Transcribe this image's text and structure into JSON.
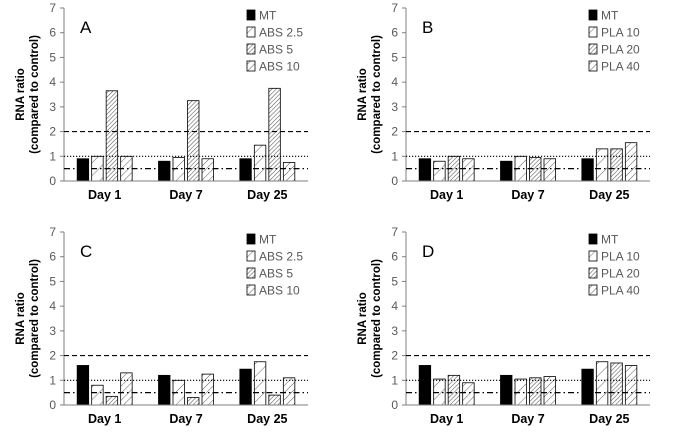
{
  "figure": {
    "ylabel_line1": "RNA ratio",
    "ylabel_line2": "(compared to control)"
  },
  "colors": {
    "mt": "#000000",
    "axis": "#7f7f7f",
    "hatch": "#555555",
    "bar_edge": "#000000",
    "ref_line": "#000000"
  },
  "chart_data": [
    {
      "type": "bar",
      "panel_label": "A",
      "categories": [
        "Day 1",
        "Day 7",
        "Day 25"
      ],
      "series": [
        {
          "name": "MT",
          "pattern": "solid",
          "values": [
            0.9,
            0.8,
            0.9
          ]
        },
        {
          "name": "ABS 2.5",
          "pattern": "sparse-diagonal",
          "values": [
            1.0,
            0.95,
            1.45
          ]
        },
        {
          "name": "ABS 5",
          "pattern": "dense-diagonal",
          "values": [
            3.65,
            3.25,
            3.75
          ]
        },
        {
          "name": "ABS 10",
          "pattern": "medium-diagonal",
          "values": [
            1.0,
            0.9,
            0.75
          ]
        }
      ],
      "yticks": [
        "0",
        "1",
        "2",
        "3",
        "4",
        "5",
        "6",
        "7"
      ],
      "ylim": [
        0,
        7
      ],
      "reference_lines": [
        {
          "value": 2.0,
          "style": "dashed"
        },
        {
          "value": 1.0,
          "style": "dotted"
        },
        {
          "value": 0.5,
          "style": "dash-dot"
        }
      ],
      "legend_position": "top-right"
    },
    {
      "type": "bar",
      "panel_label": "B",
      "categories": [
        "Day 1",
        "Day 7",
        "Day 25"
      ],
      "series": [
        {
          "name": "MT",
          "pattern": "solid",
          "values": [
            0.9,
            0.8,
            0.9
          ]
        },
        {
          "name": "PLA 10",
          "pattern": "sparse-diagonal",
          "values": [
            0.8,
            1.0,
            1.3
          ]
        },
        {
          "name": "PLA 20",
          "pattern": "dense-diagonal",
          "values": [
            1.0,
            0.95,
            1.3
          ]
        },
        {
          "name": "PLA 40",
          "pattern": "medium-diagonal",
          "values": [
            0.9,
            0.9,
            1.55
          ]
        }
      ],
      "yticks": [
        "0",
        "1",
        "2",
        "3",
        "4",
        "5",
        "6",
        "7"
      ],
      "ylim": [
        0,
        7
      ],
      "reference_lines": [
        {
          "value": 2.0,
          "style": "dashed"
        },
        {
          "value": 1.0,
          "style": "dotted"
        },
        {
          "value": 0.5,
          "style": "dash-dot"
        }
      ],
      "legend_position": "top-right"
    },
    {
      "type": "bar",
      "panel_label": "C",
      "categories": [
        "Day 1",
        "Day 7",
        "Day 25"
      ],
      "series": [
        {
          "name": "MT",
          "pattern": "solid",
          "values": [
            1.6,
            1.2,
            1.45
          ]
        },
        {
          "name": "ABS 2.5",
          "pattern": "sparse-diagonal",
          "values": [
            0.8,
            1.0,
            1.75
          ]
        },
        {
          "name": "ABS 5",
          "pattern": "dense-diagonal",
          "values": [
            0.35,
            0.3,
            0.4
          ]
        },
        {
          "name": "ABS 10",
          "pattern": "medium-diagonal",
          "values": [
            1.3,
            1.25,
            1.1
          ]
        }
      ],
      "yticks": [
        "0",
        "1",
        "2",
        "3",
        "4",
        "5",
        "6",
        "7"
      ],
      "ylim": [
        0,
        7
      ],
      "reference_lines": [
        {
          "value": 2.0,
          "style": "dashed"
        },
        {
          "value": 1.0,
          "style": "dotted"
        },
        {
          "value": 0.5,
          "style": "dash-dot"
        }
      ],
      "legend_position": "top-right"
    },
    {
      "type": "bar",
      "panel_label": "D",
      "categories": [
        "Day 1",
        "Day 7",
        "Day 25"
      ],
      "series": [
        {
          "name": "MT",
          "pattern": "solid",
          "values": [
            1.6,
            1.2,
            1.45
          ]
        },
        {
          "name": "PLA 10",
          "pattern": "sparse-diagonal",
          "values": [
            1.05,
            1.05,
            1.75
          ]
        },
        {
          "name": "PLA 20",
          "pattern": "dense-diagonal",
          "values": [
            1.2,
            1.1,
            1.7
          ]
        },
        {
          "name": "PLA 40",
          "pattern": "medium-diagonal",
          "values": [
            0.9,
            1.15,
            1.6
          ]
        }
      ],
      "yticks": [
        "0",
        "1",
        "2",
        "3",
        "4",
        "5",
        "6",
        "7"
      ],
      "ylim": [
        0,
        7
      ],
      "reference_lines": [
        {
          "value": 2.0,
          "style": "dashed"
        },
        {
          "value": 1.0,
          "style": "dotted"
        },
        {
          "value": 0.5,
          "style": "dash-dot"
        }
      ],
      "legend_position": "top-right"
    }
  ]
}
